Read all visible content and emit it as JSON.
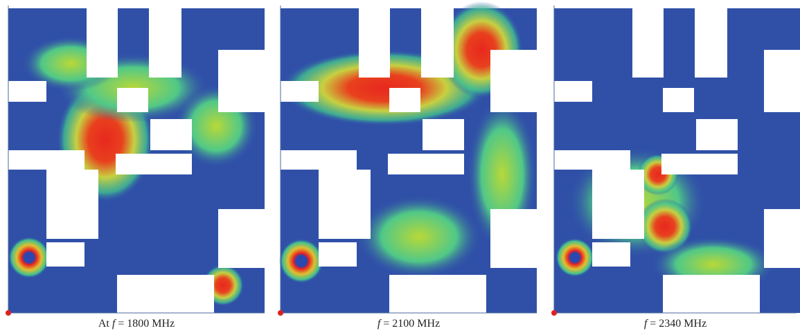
{
  "panels": [
    {
      "caption": {
        "lead": "At",
        "symbol": "f",
        "text": "= 1800 MHz"
      }
    },
    {
      "caption": {
        "symbol": "f",
        "text": "= 2100 MHz"
      }
    },
    {
      "caption": {
        "symbol": "f",
        "text": "= 2340 MHz"
      }
    }
  ]
}
